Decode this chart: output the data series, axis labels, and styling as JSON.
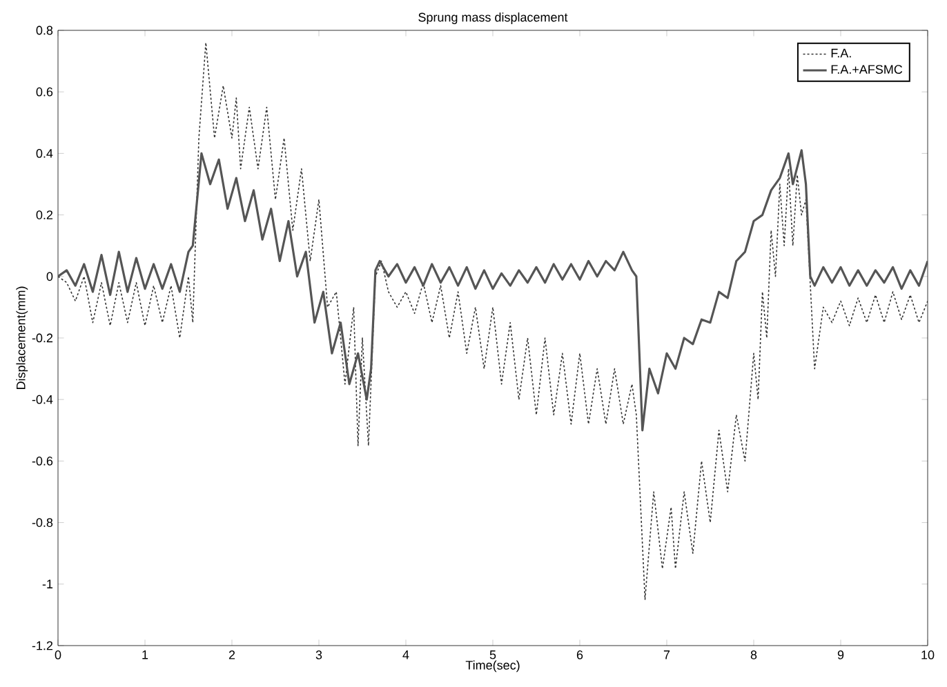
{
  "chart_data": {
    "type": "line",
    "title": "Sprung mass displacement",
    "xlabel": "Time(sec)",
    "ylabel": "Displacement(mm)",
    "xlim": [
      0,
      10
    ],
    "ylim": [
      -1.2,
      0.8
    ],
    "xticks": [
      0,
      1,
      2,
      3,
      4,
      5,
      6,
      7,
      8,
      9,
      10
    ],
    "yticks": [
      -1.2,
      -1,
      -0.8,
      -0.6,
      -0.4,
      -0.2,
      0,
      0.2,
      0.4,
      0.6,
      0.8
    ],
    "grid": false,
    "legend": "top right",
    "marker": "none",
    "series": [
      {
        "name": "F.A.",
        "color": "#333333",
        "line_style": "dotted",
        "x": [
          0,
          0.1,
          0.2,
          0.3,
          0.4,
          0.5,
          0.6,
          0.7,
          0.8,
          0.9,
          1.0,
          1.1,
          1.2,
          1.3,
          1.4,
          1.5,
          1.55,
          1.62,
          1.7,
          1.8,
          1.9,
          2.0,
          2.05,
          2.1,
          2.2,
          2.3,
          2.4,
          2.5,
          2.6,
          2.7,
          2.8,
          2.9,
          3.0,
          3.1,
          3.2,
          3.3,
          3.4,
          3.45,
          3.5,
          3.57,
          3.65,
          3.72,
          3.8,
          3.9,
          4.0,
          4.1,
          4.2,
          4.3,
          4.4,
          4.5,
          4.6,
          4.7,
          4.8,
          4.9,
          5.0,
          5.1,
          5.2,
          5.3,
          5.4,
          5.5,
          5.6,
          5.7,
          5.8,
          5.9,
          6.0,
          6.1,
          6.2,
          6.3,
          6.4,
          6.5,
          6.6,
          6.65,
          6.75,
          6.85,
          6.95,
          7.05,
          7.1,
          7.2,
          7.3,
          7.4,
          7.5,
          7.6,
          7.7,
          7.8,
          7.9,
          8.0,
          8.05,
          8.1,
          8.15,
          8.2,
          8.25,
          8.3,
          8.35,
          8.4,
          8.45,
          8.5,
          8.55,
          8.6,
          8.7,
          8.8,
          8.9,
          9.0,
          9.1,
          9.2,
          9.3,
          9.4,
          9.5,
          9.6,
          9.7,
          9.8,
          9.9,
          10.0
        ],
        "values": [
          0,
          -0.02,
          -0.08,
          0.0,
          -0.15,
          -0.02,
          -0.16,
          -0.02,
          -0.15,
          -0.02,
          -0.16,
          -0.03,
          -0.15,
          -0.03,
          -0.2,
          0.0,
          -0.15,
          0.45,
          0.76,
          0.45,
          0.62,
          0.45,
          0.58,
          0.35,
          0.55,
          0.35,
          0.55,
          0.25,
          0.45,
          0.15,
          0.35,
          0.05,
          0.25,
          -0.1,
          -0.05,
          -0.35,
          -0.1,
          -0.55,
          -0.2,
          -0.55,
          0.0,
          0.05,
          -0.05,
          -0.1,
          -0.05,
          -0.12,
          -0.02,
          -0.15,
          -0.03,
          -0.2,
          -0.05,
          -0.25,
          -0.1,
          -0.3,
          -0.1,
          -0.35,
          -0.15,
          -0.4,
          -0.2,
          -0.45,
          -0.2,
          -0.45,
          -0.25,
          -0.48,
          -0.25,
          -0.48,
          -0.3,
          -0.48,
          -0.3,
          -0.48,
          -0.35,
          -0.45,
          -1.05,
          -0.7,
          -0.95,
          -0.75,
          -0.95,
          -0.7,
          -0.9,
          -0.6,
          -0.8,
          -0.5,
          -0.7,
          -0.45,
          -0.6,
          -0.25,
          -0.4,
          -0.05,
          -0.2,
          0.15,
          0.0,
          0.3,
          0.1,
          0.35,
          0.1,
          0.33,
          0.2,
          0.25,
          -0.3,
          -0.1,
          -0.15,
          -0.08,
          -0.16,
          -0.07,
          -0.15,
          -0.06,
          -0.15,
          -0.05,
          -0.14,
          -0.06,
          -0.15,
          -0.08
        ]
      },
      {
        "name": "F.A.+AFSMC",
        "color": "#555555",
        "line_style": "solid",
        "x": [
          0,
          0.1,
          0.2,
          0.3,
          0.4,
          0.5,
          0.6,
          0.7,
          0.8,
          0.9,
          1.0,
          1.1,
          1.2,
          1.3,
          1.4,
          1.5,
          1.55,
          1.65,
          1.75,
          1.85,
          1.95,
          2.05,
          2.15,
          2.25,
          2.35,
          2.45,
          2.55,
          2.65,
          2.75,
          2.85,
          2.95,
          3.05,
          3.15,
          3.25,
          3.35,
          3.45,
          3.55,
          3.6,
          3.65,
          3.7,
          3.8,
          3.9,
          4.0,
          4.1,
          4.2,
          4.3,
          4.4,
          4.5,
          4.6,
          4.7,
          4.8,
          4.9,
          5.0,
          5.1,
          5.2,
          5.3,
          5.4,
          5.5,
          5.6,
          5.7,
          5.8,
          5.9,
          6.0,
          6.1,
          6.2,
          6.3,
          6.4,
          6.5,
          6.6,
          6.65,
          6.72,
          6.8,
          6.9,
          7.0,
          7.1,
          7.2,
          7.3,
          7.4,
          7.5,
          7.6,
          7.7,
          7.8,
          7.9,
          8.0,
          8.1,
          8.2,
          8.3,
          8.4,
          8.45,
          8.55,
          8.6,
          8.65,
          8.7,
          8.8,
          8.9,
          9.0,
          9.1,
          9.2,
          9.3,
          9.4,
          9.5,
          9.6,
          9.7,
          9.8,
          9.9,
          10.0
        ],
        "values": [
          0,
          0.02,
          -0.03,
          0.04,
          -0.05,
          0.07,
          -0.06,
          0.08,
          -0.05,
          0.06,
          -0.04,
          0.04,
          -0.04,
          0.04,
          -0.05,
          0.08,
          0.1,
          0.4,
          0.3,
          0.38,
          0.22,
          0.32,
          0.18,
          0.28,
          0.12,
          0.22,
          0.05,
          0.18,
          0.0,
          0.08,
          -0.15,
          -0.05,
          -0.25,
          -0.15,
          -0.35,
          -0.25,
          -0.4,
          -0.3,
          0.02,
          0.05,
          0.0,
          0.04,
          -0.02,
          0.03,
          -0.03,
          0.04,
          -0.02,
          0.03,
          -0.03,
          0.03,
          -0.04,
          0.02,
          -0.04,
          0.01,
          -0.03,
          0.02,
          -0.02,
          0.03,
          -0.02,
          0.04,
          -0.01,
          0.04,
          -0.01,
          0.05,
          0.0,
          0.05,
          0.02,
          0.08,
          0.02,
          0.0,
          -0.5,
          -0.3,
          -0.38,
          -0.25,
          -0.3,
          -0.2,
          -0.22,
          -0.14,
          -0.15,
          -0.05,
          -0.07,
          0.05,
          0.08,
          0.18,
          0.2,
          0.28,
          0.32,
          0.4,
          0.3,
          0.41,
          0.3,
          0.0,
          -0.03,
          0.03,
          -0.02,
          0.03,
          -0.03,
          0.02,
          -0.03,
          0.02,
          -0.02,
          0.03,
          -0.04,
          0.02,
          -0.03,
          0.05
        ]
      }
    ]
  }
}
